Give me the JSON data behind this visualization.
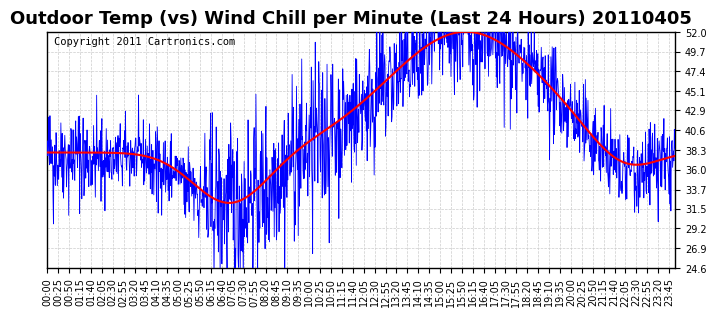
{
  "title": "Outdoor Temp (vs) Wind Chill per Minute (Last 24 Hours) 20110405",
  "copyright": "Copyright 2011 Cartronics.com",
  "ylim": [
    24.6,
    52.0
  ],
  "yticks": [
    24.6,
    26.9,
    29.2,
    31.5,
    33.7,
    36.0,
    38.3,
    40.6,
    42.9,
    45.1,
    47.4,
    49.7,
    52.0
  ],
  "bg_color": "#ffffff",
  "grid_color": "#cccccc",
  "temp_color": "#0000ff",
  "windchill_color": "#ff0000",
  "title_fontsize": 13,
  "copyright_fontsize": 7.5,
  "tick_fontsize": 7,
  "n_minutes": 1440,
  "seed": 42
}
